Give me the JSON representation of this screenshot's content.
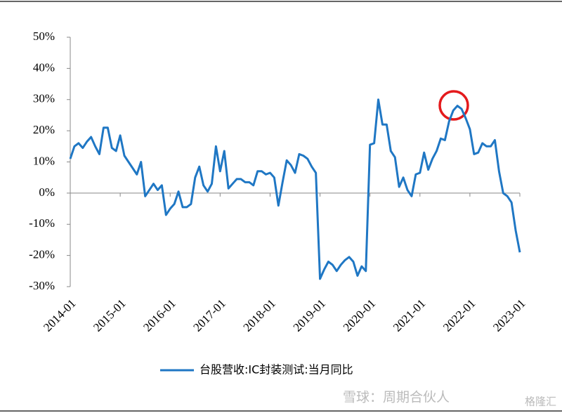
{
  "chart_data": {
    "type": "line",
    "categories": [
      "2014-01",
      null,
      null,
      null,
      null,
      null,
      null,
      null,
      null,
      null,
      null,
      null,
      "2015-01",
      null,
      null,
      null,
      null,
      null,
      null,
      null,
      null,
      null,
      null,
      null,
      "2016-01",
      null,
      null,
      null,
      null,
      null,
      null,
      null,
      null,
      null,
      null,
      null,
      "2017-01",
      null,
      null,
      null,
      null,
      null,
      null,
      null,
      null,
      null,
      null,
      null,
      "2018-01",
      null,
      null,
      null,
      null,
      null,
      null,
      null,
      null,
      null,
      null,
      null,
      "2019-01",
      null,
      null,
      null,
      null,
      null,
      null,
      null,
      null,
      null,
      null,
      null,
      "2020-01",
      null,
      null,
      null,
      null,
      null,
      null,
      null,
      null,
      null,
      null,
      null,
      "2021-01",
      null,
      null,
      null,
      null,
      null,
      null,
      null,
      null,
      null,
      null,
      null,
      "2022-01",
      null,
      null,
      null,
      null,
      null,
      null,
      null,
      null,
      null,
      null,
      null,
      "2023-01"
    ],
    "series": [
      {
        "name": "台股营收:IC封装测试:当月同比",
        "color": "#1f77c4",
        "values": [
          11,
          15,
          16,
          14.5,
          16.5,
          18,
          15,
          12.5,
          21,
          21,
          14.5,
          13.5,
          18.5,
          12,
          10,
          8,
          6,
          10,
          -1,
          1,
          3,
          1,
          2.5,
          -7,
          -5,
          -3.5,
          0.5,
          -4.5,
          -4.5,
          -3.5,
          5,
          8.5,
          2.5,
          0.5,
          3,
          15,
          7,
          13.5,
          1.5,
          3,
          4.5,
          4.5,
          3.5,
          3.5,
          2.5,
          7,
          7,
          6,
          6.5,
          5,
          -4,
          3.5,
          10.5,
          9,
          6.5,
          12.5,
          12,
          11,
          8.5,
          6.5,
          -27.5,
          -24.5,
          -22,
          -23,
          -25,
          -23,
          -21.5,
          -20.5,
          -22,
          -26.5,
          -23.5,
          -25,
          15.5,
          16,
          30,
          22,
          22,
          13.5,
          11.5,
          2,
          5,
          1,
          -1,
          6,
          6.5,
          13,
          7.5,
          11,
          13.5,
          17.5,
          17,
          23,
          26.5,
          28,
          27,
          24,
          20.5,
          12.5,
          13,
          16,
          15,
          15,
          17,
          7,
          0,
          -1,
          -3,
          -12,
          -19
        ]
      }
    ],
    "ylim": [
      -30,
      50
    ],
    "yticks": [
      {
        "value": 50,
        "label": "50%"
      },
      {
        "value": 40,
        "label": "40%"
      },
      {
        "value": 30,
        "label": "30%"
      },
      {
        "value": 20,
        "label": "20%"
      },
      {
        "value": 10,
        "label": "10%"
      },
      {
        "value": 0,
        "label": "0%"
      },
      {
        "value": -10,
        "label": "-10%"
      },
      {
        "value": -20,
        "label": "-20%"
      },
      {
        "value": -30,
        "label": "-30%"
      }
    ],
    "legend": "bottom",
    "watermark": "雪球：周期合伙人",
    "watermark2": "格隆汇"
  }
}
